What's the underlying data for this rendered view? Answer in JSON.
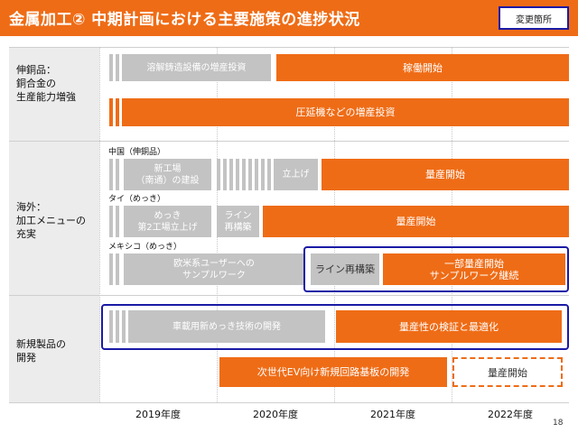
{
  "header": {
    "title": "金属加工② 中期計画における主要施策の進捗状況",
    "badge": "変更箇所"
  },
  "sections": {
    "copper": {
      "label": "伸銅品：\n銅合金の\n生産能力増強"
    },
    "overseas": {
      "label": "海外：\n加工メニューの\n充実"
    },
    "newproduct": {
      "label": "新規製品の\n開発"
    }
  },
  "sublabels": {
    "china": "中国（伸銅品）",
    "thailand": "タイ（めっき）",
    "mexico": "メキシコ（めっき）"
  },
  "bars": {
    "smelting": "溶解鋳造設備の増産投資",
    "operation": "稼働開始",
    "rolling": "圧延機などの増産投資",
    "nantong": "新工場\n（南通）の建設",
    "startup": "立上げ",
    "china_mass": "量産開始",
    "plating2": "めっき\n第2工場立上げ",
    "line": "ライン\n再構築",
    "thai_mass": "量産開始",
    "samples": "欧米系ユーザーへの\nサンプルワーク",
    "line_rebuild": "ライン再構築",
    "partial": "一部量産開始\nサンプルワーク継続",
    "plating_dev": "車載用新めっき技術の開発",
    "verify": "量産性の検証と最適化",
    "ev": "次世代EV向け新規回路基板の開発",
    "ev_mass": "量産開始"
  },
  "years": [
    "2019年度",
    "2020年度",
    "2021年度",
    "2022年度"
  ],
  "page_number": "18",
  "colors": {
    "accent": "#ef6c16",
    "gray": "#c3c3c3",
    "highlight": "#1a1aa6"
  }
}
